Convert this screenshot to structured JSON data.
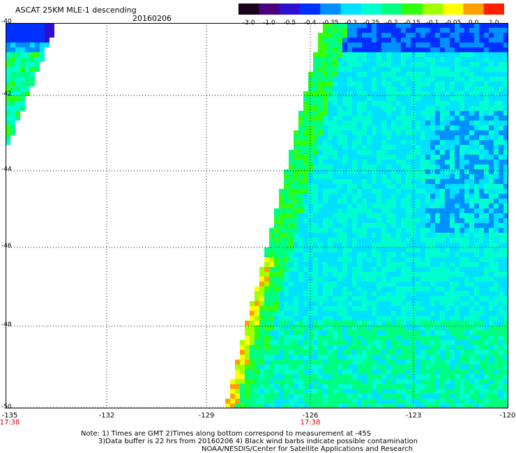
{
  "header": {
    "title": "ASCAT 25KM MLE-1 descending",
    "date": "20160206"
  },
  "colorbar": {
    "labels": [
      "-3.0",
      "-1.0",
      "-0.5",
      "-0.4",
      "-0.35",
      "-0.3",
      "-0.25",
      "-0.2",
      "-0.15",
      "-0.1",
      "-0.05",
      "0.0",
      "1.0"
    ],
    "colors": [
      "#1a001a",
      "#4a0080",
      "#3010d0",
      "#0030ff",
      "#0090ff",
      "#00e0ff",
      "#00ffd0",
      "#00ff80",
      "#30ff10",
      "#a0ff00",
      "#ffff00",
      "#ffa000",
      "#ff2000"
    ]
  },
  "map": {
    "lat_labels": [
      "-40",
      "-42",
      "-44",
      "-46",
      "-48",
      "-50"
    ],
    "lon_labels": [
      "-135",
      "-132",
      "-129",
      "-126",
      "-123",
      "-120"
    ],
    "time_labels": [
      {
        "lon": "-135",
        "time": "17:38"
      },
      {
        "lon": "-126",
        "time": "17:38"
      }
    ]
  },
  "notes": {
    "line1": "Note: 1) Times are GMT 2)Times along bottom correspond to measurement at -45S",
    "line2": "3)Data buffer is 22 hrs from 20160206 4) Black wind barbs indicate possible contamination",
    "line3": "NOAA/NESDIS/Center for Satellite Applications and Research"
  }
}
